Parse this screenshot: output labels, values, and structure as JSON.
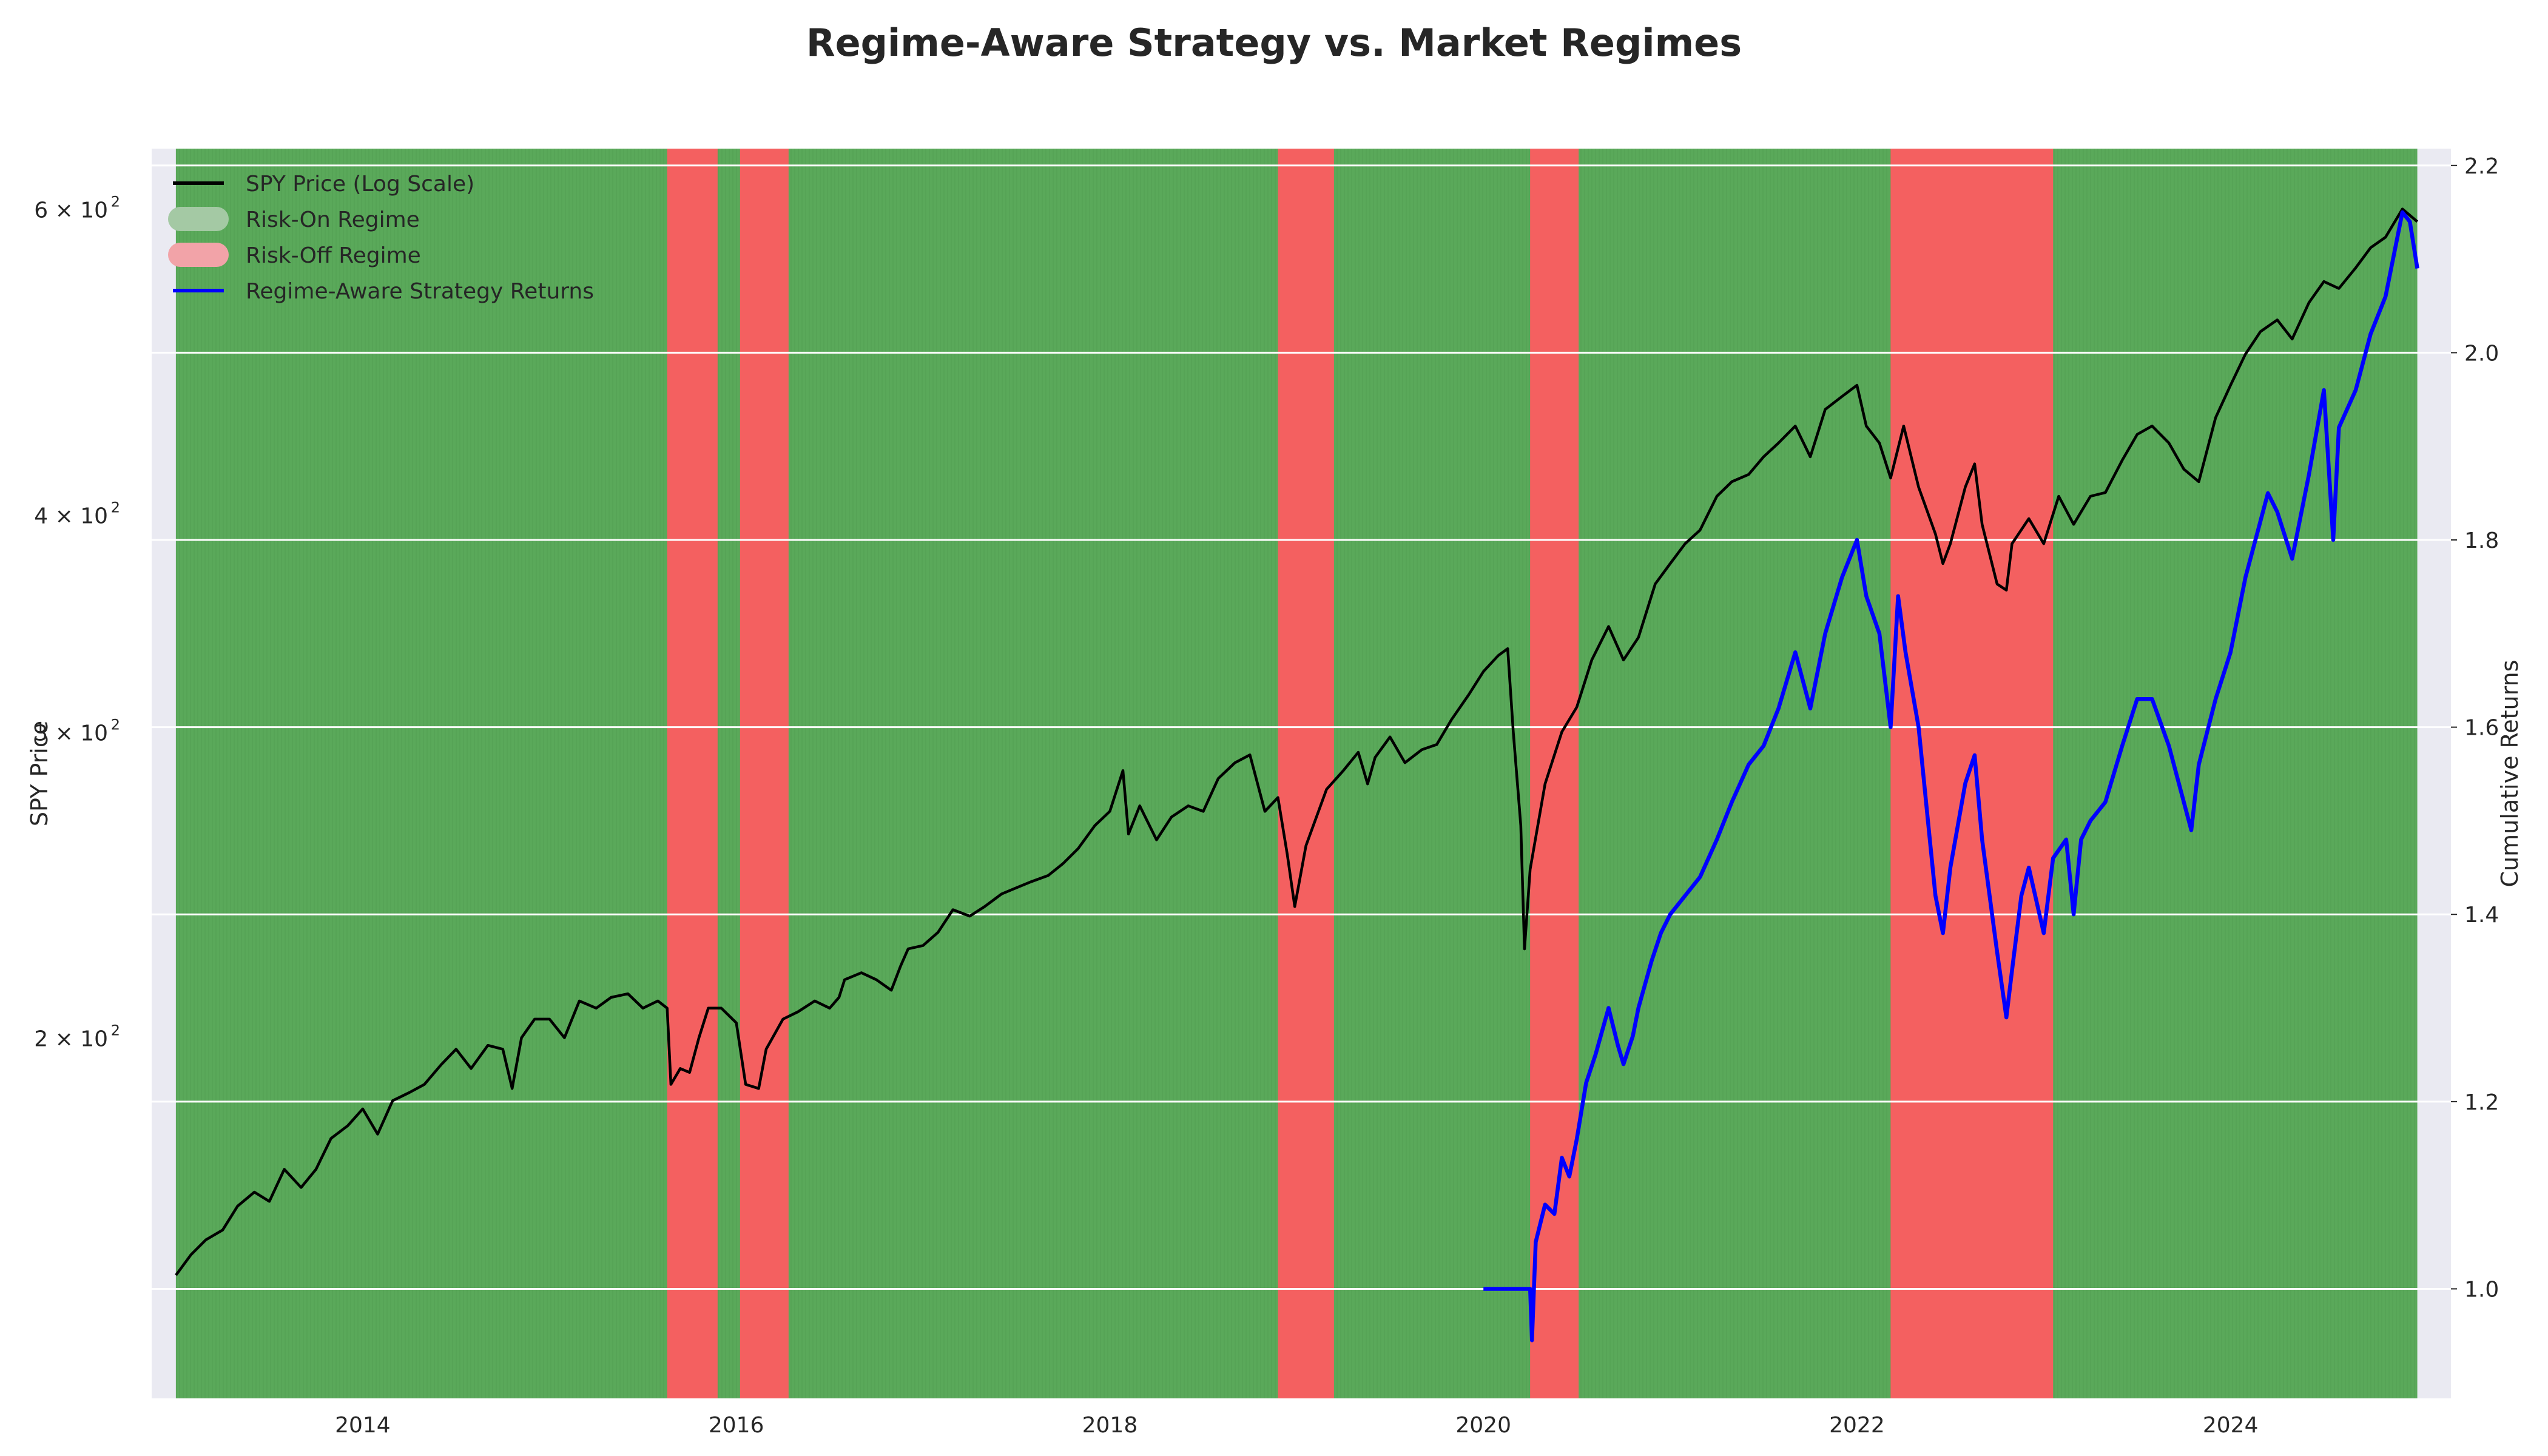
{
  "chart_data": {
    "type": "line",
    "title": "Regime-Aware Strategy vs. Market Regimes",
    "xlabel": "",
    "ylabel_left": "SPY Price",
    "ylabel_right": "Cumulative Returns",
    "x_range": [
      2012.87,
      2025.18
    ],
    "y_left_scale": "log",
    "y_left_range": [
      124,
      650
    ],
    "y_left_ticks": [
      200,
      300,
      400,
      600
    ],
    "y_left_tick_labels": [
      {
        "base": "2",
        "exp": "2"
      },
      {
        "base": "3",
        "exp": "2"
      },
      {
        "base": "4",
        "exp": "2"
      },
      {
        "base": "6",
        "exp": "2"
      }
    ],
    "y_right_range": [
      0.883,
      2.218
    ],
    "y_right_ticks": [
      "1.0",
      "1.2",
      "1.4",
      "1.6",
      "1.8",
      "2.0",
      "2.2"
    ],
    "x_ticks": [
      "2014",
      "2016",
      "2018",
      "2020",
      "2022",
      "2024"
    ],
    "grid": true,
    "legend_position": "top-left",
    "legend": [
      {
        "label": "SPY Price (Log Scale)",
        "kind": "line",
        "color": "#000000"
      },
      {
        "label": "Risk-On Regime",
        "kind": "patch",
        "color": "#a4c9a4"
      },
      {
        "label": "Risk-Off Regime",
        "kind": "patch",
        "color": "#f2a3a8"
      },
      {
        "label": "Regime-Aware Strategy Returns",
        "kind": "line",
        "color": "#0000ff"
      }
    ],
    "colors": {
      "background": "#eaeaf2",
      "risk_on": "#5aa95a",
      "risk_off": "#f46060",
      "spy_line": "#000000",
      "strategy_line": "#0000ff",
      "grid": "#ffffff"
    },
    "regime_start": 2013.0,
    "regime_end": 2025.0,
    "risk_off_periods": [
      [
        2015.63,
        2015.9
      ],
      [
        2016.02,
        2016.28
      ],
      [
        2018.9,
        2019.2
      ],
      [
        2020.25,
        2020.51
      ],
      [
        2022.18,
        2023.05
      ]
    ],
    "series": [
      {
        "name": "SPY Price (Log Scale)",
        "axis": "left",
        "points": [
          [
            2013.0,
            146
          ],
          [
            2013.08,
            150
          ],
          [
            2013.16,
            153
          ],
          [
            2013.25,
            155
          ],
          [
            2013.33,
            160
          ],
          [
            2013.42,
            163
          ],
          [
            2013.5,
            161
          ],
          [
            2013.58,
            168
          ],
          [
            2013.67,
            164
          ],
          [
            2013.75,
            168
          ],
          [
            2013.83,
            175
          ],
          [
            2013.92,
            178
          ],
          [
            2014.0,
            182
          ],
          [
            2014.08,
            176
          ],
          [
            2014.16,
            184
          ],
          [
            2014.25,
            186
          ],
          [
            2014.33,
            188
          ],
          [
            2014.42,
            193
          ],
          [
            2014.5,
            197
          ],
          [
            2014.58,
            192
          ],
          [
            2014.67,
            198
          ],
          [
            2014.75,
            197
          ],
          [
            2014.8,
            187
          ],
          [
            2014.85,
            200
          ],
          [
            2014.92,
            205
          ],
          [
            2015.0,
            205
          ],
          [
            2015.08,
            200
          ],
          [
            2015.16,
            210
          ],
          [
            2015.25,
            208
          ],
          [
            2015.33,
            211
          ],
          [
            2015.42,
            212
          ],
          [
            2015.5,
            208
          ],
          [
            2015.58,
            210
          ],
          [
            2015.63,
            208
          ],
          [
            2015.65,
            188
          ],
          [
            2015.7,
            192
          ],
          [
            2015.75,
            191
          ],
          [
            2015.8,
            200
          ],
          [
            2015.85,
            208
          ],
          [
            2015.92,
            208
          ],
          [
            2016.0,
            204
          ],
          [
            2016.05,
            188
          ],
          [
            2016.12,
            187
          ],
          [
            2016.16,
            197
          ],
          [
            2016.25,
            205
          ],
          [
            2016.33,
            207
          ],
          [
            2016.42,
            210
          ],
          [
            2016.5,
            208
          ],
          [
            2016.55,
            211
          ],
          [
            2016.58,
            216
          ],
          [
            2016.67,
            218
          ],
          [
            2016.75,
            216
          ],
          [
            2016.83,
            213
          ],
          [
            2016.88,
            220
          ],
          [
            2016.92,
            225
          ],
          [
            2017.0,
            226
          ],
          [
            2017.08,
            230
          ],
          [
            2017.16,
            237
          ],
          [
            2017.25,
            235
          ],
          [
            2017.33,
            238
          ],
          [
            2017.42,
            242
          ],
          [
            2017.5,
            244
          ],
          [
            2017.58,
            246
          ],
          [
            2017.67,
            248
          ],
          [
            2017.75,
            252
          ],
          [
            2017.83,
            257
          ],
          [
            2017.92,
            265
          ],
          [
            2018.0,
            270
          ],
          [
            2018.07,
            285
          ],
          [
            2018.1,
            262
          ],
          [
            2018.16,
            272
          ],
          [
            2018.25,
            260
          ],
          [
            2018.33,
            268
          ],
          [
            2018.42,
            272
          ],
          [
            2018.5,
            270
          ],
          [
            2018.58,
            282
          ],
          [
            2018.67,
            288
          ],
          [
            2018.75,
            291
          ],
          [
            2018.83,
            270
          ],
          [
            2018.9,
            275
          ],
          [
            2018.95,
            255
          ],
          [
            2018.99,
            238
          ],
          [
            2019.05,
            258
          ],
          [
            2019.16,
            278
          ],
          [
            2019.25,
            285
          ],
          [
            2019.33,
            292
          ],
          [
            2019.38,
            280
          ],
          [
            2019.42,
            290
          ],
          [
            2019.5,
            298
          ],
          [
            2019.58,
            288
          ],
          [
            2019.67,
            293
          ],
          [
            2019.75,
            295
          ],
          [
            2019.83,
            305
          ],
          [
            2019.92,
            315
          ],
          [
            2020.0,
            325
          ],
          [
            2020.08,
            332
          ],
          [
            2020.13,
            335
          ],
          [
            2020.16,
            300
          ],
          [
            2020.2,
            265
          ],
          [
            2020.22,
            225
          ],
          [
            2020.25,
            250
          ],
          [
            2020.33,
            280
          ],
          [
            2020.42,
            300
          ],
          [
            2020.5,
            310
          ],
          [
            2020.58,
            330
          ],
          [
            2020.67,
            345
          ],
          [
            2020.75,
            330
          ],
          [
            2020.83,
            340
          ],
          [
            2020.92,
            365
          ],
          [
            2021.0,
            375
          ],
          [
            2021.08,
            385
          ],
          [
            2021.16,
            392
          ],
          [
            2021.25,
            410
          ],
          [
            2021.33,
            418
          ],
          [
            2021.42,
            422
          ],
          [
            2021.5,
            432
          ],
          [
            2021.58,
            440
          ],
          [
            2021.67,
            450
          ],
          [
            2021.75,
            432
          ],
          [
            2021.83,
            460
          ],
          [
            2021.92,
            468
          ],
          [
            2022.0,
            475
          ],
          [
            2022.05,
            450
          ],
          [
            2022.12,
            440
          ],
          [
            2022.18,
            420
          ],
          [
            2022.25,
            450
          ],
          [
            2022.33,
            415
          ],
          [
            2022.42,
            390
          ],
          [
            2022.46,
            375
          ],
          [
            2022.5,
            385
          ],
          [
            2022.58,
            415
          ],
          [
            2022.63,
            428
          ],
          [
            2022.67,
            395
          ],
          [
            2022.75,
            365
          ],
          [
            2022.8,
            362
          ],
          [
            2022.83,
            385
          ],
          [
            2022.92,
            398
          ],
          [
            2023.0,
            385
          ],
          [
            2023.08,
            410
          ],
          [
            2023.16,
            395
          ],
          [
            2023.25,
            410
          ],
          [
            2023.33,
            412
          ],
          [
            2023.42,
            430
          ],
          [
            2023.5,
            445
          ],
          [
            2023.58,
            450
          ],
          [
            2023.67,
            440
          ],
          [
            2023.75,
            425
          ],
          [
            2023.83,
            418
          ],
          [
            2023.92,
            455
          ],
          [
            2024.0,
            475
          ],
          [
            2024.08,
            495
          ],
          [
            2024.16,
            510
          ],
          [
            2024.25,
            518
          ],
          [
            2024.33,
            505
          ],
          [
            2024.42,
            530
          ],
          [
            2024.5,
            545
          ],
          [
            2024.58,
            540
          ],
          [
            2024.67,
            555
          ],
          [
            2024.75,
            570
          ],
          [
            2024.83,
            578
          ],
          [
            2024.92,
            600
          ],
          [
            2025.0,
            590
          ]
        ]
      },
      {
        "name": "Regime-Aware Strategy Returns",
        "axis": "right",
        "points": [
          [
            2020.0,
            1.0
          ],
          [
            2020.15,
            1.0
          ],
          [
            2020.25,
            1.0
          ],
          [
            2020.26,
            0.945
          ],
          [
            2020.28,
            1.05
          ],
          [
            2020.33,
            1.09
          ],
          [
            2020.38,
            1.08
          ],
          [
            2020.42,
            1.14
          ],
          [
            2020.46,
            1.12
          ],
          [
            2020.5,
            1.16
          ],
          [
            2020.55,
            1.22
          ],
          [
            2020.6,
            1.25
          ],
          [
            2020.67,
            1.3
          ],
          [
            2020.72,
            1.26
          ],
          [
            2020.75,
            1.24
          ],
          [
            2020.8,
            1.27
          ],
          [
            2020.83,
            1.3
          ],
          [
            2020.9,
            1.35
          ],
          [
            2020.95,
            1.38
          ],
          [
            2021.0,
            1.4
          ],
          [
            2021.08,
            1.42
          ],
          [
            2021.16,
            1.44
          ],
          [
            2021.25,
            1.48
          ],
          [
            2021.33,
            1.52
          ],
          [
            2021.42,
            1.56
          ],
          [
            2021.5,
            1.58
          ],
          [
            2021.58,
            1.62
          ],
          [
            2021.67,
            1.68
          ],
          [
            2021.75,
            1.62
          ],
          [
            2021.83,
            1.7
          ],
          [
            2021.92,
            1.76
          ],
          [
            2022.0,
            1.8
          ],
          [
            2022.05,
            1.74
          ],
          [
            2022.12,
            1.7
          ],
          [
            2022.18,
            1.6
          ],
          [
            2022.22,
            1.74
          ],
          [
            2022.26,
            1.68
          ],
          [
            2022.33,
            1.6
          ],
          [
            2022.38,
            1.5
          ],
          [
            2022.42,
            1.42
          ],
          [
            2022.46,
            1.38
          ],
          [
            2022.5,
            1.45
          ],
          [
            2022.58,
            1.54
          ],
          [
            2022.63,
            1.57
          ],
          [
            2022.67,
            1.48
          ],
          [
            2022.75,
            1.36
          ],
          [
            2022.8,
            1.29
          ],
          [
            2022.83,
            1.34
          ],
          [
            2022.88,
            1.42
          ],
          [
            2022.92,
            1.45
          ],
          [
            2023.0,
            1.38
          ],
          [
            2023.05,
            1.46
          ],
          [
            2023.12,
            1.48
          ],
          [
            2023.16,
            1.4
          ],
          [
            2023.2,
            1.48
          ],
          [
            2023.25,
            1.5
          ],
          [
            2023.33,
            1.52
          ],
          [
            2023.42,
            1.58
          ],
          [
            2023.5,
            1.63
          ],
          [
            2023.58,
            1.63
          ],
          [
            2023.67,
            1.58
          ],
          [
            2023.75,
            1.52
          ],
          [
            2023.79,
            1.49
          ],
          [
            2023.83,
            1.56
          ],
          [
            2023.92,
            1.63
          ],
          [
            2024.0,
            1.68
          ],
          [
            2024.08,
            1.76
          ],
          [
            2024.16,
            1.82
          ],
          [
            2024.2,
            1.85
          ],
          [
            2024.25,
            1.83
          ],
          [
            2024.33,
            1.78
          ],
          [
            2024.42,
            1.87
          ],
          [
            2024.5,
            1.96
          ],
          [
            2024.55,
            1.8
          ],
          [
            2024.58,
            1.92
          ],
          [
            2024.67,
            1.96
          ],
          [
            2024.75,
            2.02
          ],
          [
            2024.83,
            2.06
          ],
          [
            2024.92,
            2.15
          ],
          [
            2024.96,
            2.14
          ],
          [
            2025.0,
            2.09
          ]
        ]
      }
    ]
  }
}
